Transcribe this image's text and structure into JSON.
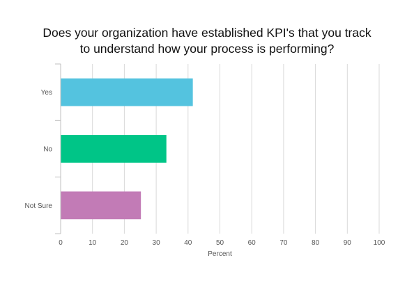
{
  "chart_data": {
    "type": "bar",
    "orientation": "horizontal",
    "title_lines": [
      "Does your organization have established KPI's that you track",
      "to understand how your process is performing?"
    ],
    "title": "Does your organization have established KPI's that you track to understand how your process is performing?",
    "xlabel": "Percent",
    "ylabel": "",
    "categories": [
      "Yes",
      "No",
      "Not Sure"
    ],
    "values": [
      41.5,
      33.2,
      25.2
    ],
    "colors": [
      "#54c3df",
      "#00c587",
      "#c27bb6"
    ],
    "xlim": [
      0,
      100
    ],
    "xticks": [
      0,
      10,
      20,
      30,
      40,
      50,
      60,
      70,
      80,
      90,
      100
    ],
    "grid": true,
    "legend": "none"
  }
}
